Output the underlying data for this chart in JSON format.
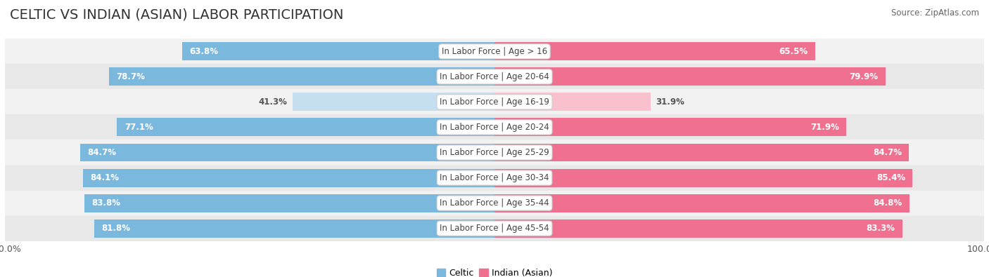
{
  "title": "CELTIC VS INDIAN (ASIAN) LABOR PARTICIPATION",
  "source": "Source: ZipAtlas.com",
  "categories": [
    "In Labor Force | Age > 16",
    "In Labor Force | Age 20-64",
    "In Labor Force | Age 16-19",
    "In Labor Force | Age 20-24",
    "In Labor Force | Age 25-29",
    "In Labor Force | Age 30-34",
    "In Labor Force | Age 35-44",
    "In Labor Force | Age 45-54"
  ],
  "celtic_values": [
    63.8,
    78.7,
    41.3,
    77.1,
    84.7,
    84.1,
    83.8,
    81.8
  ],
  "indian_values": [
    65.5,
    79.9,
    31.9,
    71.9,
    84.7,
    85.4,
    84.8,
    83.3
  ],
  "celtic_color": "#7ab8de",
  "celtic_color_light": "#c5dff0",
  "indian_color": "#f07090",
  "indian_color_light": "#f9c0ce",
  "row_bg_odd": "#f2f2f2",
  "row_bg_even": "#e8e8e8",
  "max_val": 100.0,
  "legend_celtic": "Celtic",
  "legend_indian": "Indian (Asian)",
  "title_fontsize": 14,
  "label_fontsize": 8.5,
  "value_fontsize": 8.5,
  "tick_fontsize": 9
}
